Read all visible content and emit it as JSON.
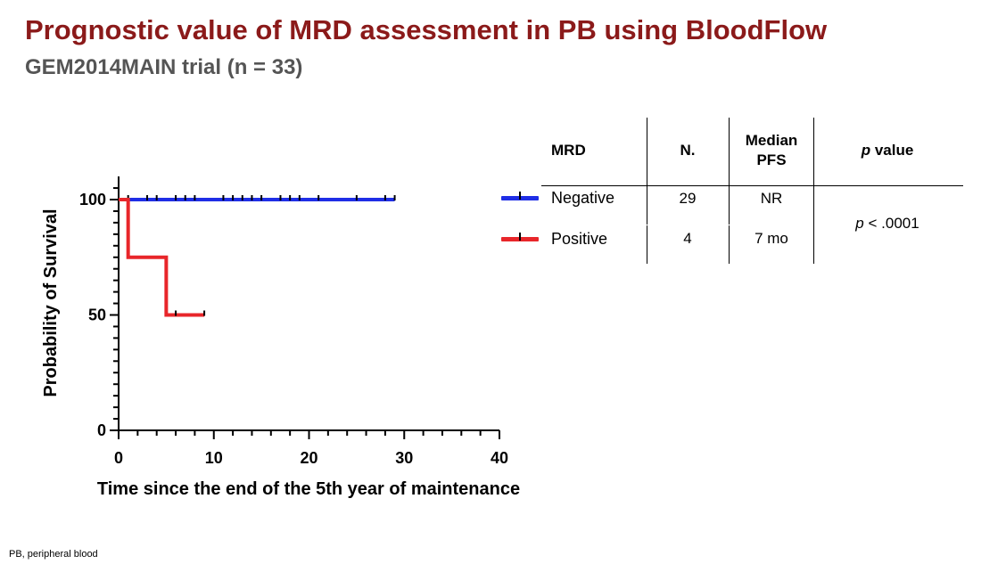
{
  "slide": {
    "title": "Prognostic value of MRD assessment in PB using BloodFlow",
    "subtitle": "GEM2014MAIN trial (n = 33)",
    "footnote": "PB, peripheral blood"
  },
  "chart_data": {
    "type": "line",
    "subtype": "kaplan-meier",
    "title": "",
    "xlabel": "Time since the end of the 5th year of maintenance",
    "ylabel": "Probability of Survival",
    "xlim": [
      0,
      40
    ],
    "ylim": [
      0,
      100
    ],
    "x_ticks": [
      0,
      10,
      20,
      30,
      40
    ],
    "y_ticks": [
      0,
      50,
      100
    ],
    "grid": false,
    "series": [
      {
        "name": "Negative",
        "color": "#1f2ee6",
        "steps": [
          [
            0,
            100
          ],
          [
            29,
            100
          ]
        ],
        "censor_x": [
          1,
          3,
          4,
          6,
          7,
          8,
          11,
          12,
          13,
          14,
          15,
          17,
          18,
          19,
          21,
          25,
          28,
          29
        ]
      },
      {
        "name": "Positive",
        "color": "#e8262a",
        "steps": [
          [
            0,
            100
          ],
          [
            1,
            100
          ],
          [
            1,
            75
          ],
          [
            5,
            75
          ],
          [
            5,
            50
          ],
          [
            9,
            50
          ]
        ],
        "censor_x": [
          6,
          9
        ]
      }
    ]
  },
  "table": {
    "headers": {
      "mrd": "MRD",
      "n": "N.",
      "median_line1": "Median",
      "median_line2": "PFS",
      "p_italic": "p",
      "p_rest": " value"
    },
    "rows": [
      {
        "mrd": "Negative",
        "n": "29",
        "median": "NR"
      },
      {
        "mrd": "Positive",
        "n": "4",
        "median": "7 mo"
      }
    ],
    "p_value_italic": "p",
    "p_value_rest": " < .0001"
  }
}
